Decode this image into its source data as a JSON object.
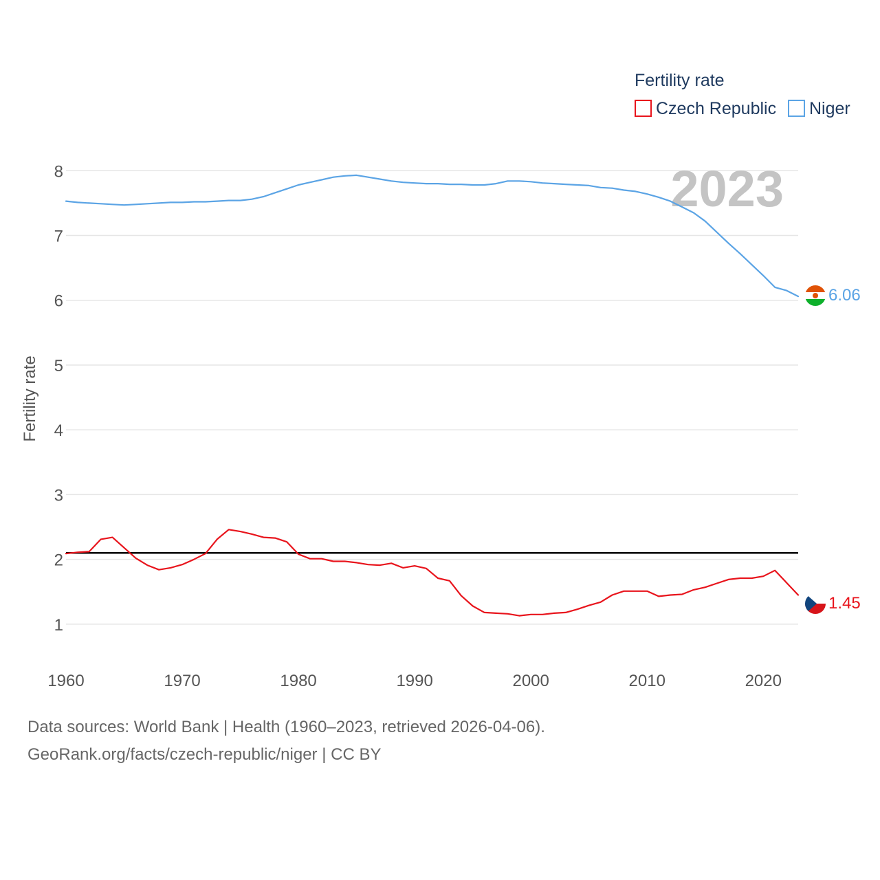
{
  "chart_data": {
    "type": "line",
    "ylabel": "Fertility rate",
    "xlabel": "",
    "xlim": [
      1960,
      2023
    ],
    "ylim": [
      0.5,
      8.3
    ],
    "y_ticks": [
      1,
      2,
      3,
      4,
      5,
      6,
      7,
      8
    ],
    "x_ticks": [
      1960,
      1970,
      1980,
      1990,
      2000,
      2010,
      2020
    ],
    "grid": true,
    "current_year": "2023",
    "legend": {
      "title": "Fertility rate",
      "position": "top-right"
    },
    "reference_line": {
      "y": 2.1,
      "color": "#000000"
    },
    "series": [
      {
        "name": "Czech Republic",
        "color": "#e8141c",
        "end_label": "1.45",
        "x": [
          1960,
          1961,
          1962,
          1963,
          1964,
          1965,
          1966,
          1967,
          1968,
          1969,
          1970,
          1971,
          1972,
          1973,
          1974,
          1975,
          1976,
          1977,
          1978,
          1979,
          1980,
          1981,
          1982,
          1983,
          1984,
          1985,
          1986,
          1987,
          1988,
          1989,
          1990,
          1991,
          1992,
          1993,
          1994,
          1995,
          1996,
          1997,
          1998,
          1999,
          2000,
          2001,
          2002,
          2003,
          2004,
          2005,
          2006,
          2007,
          2008,
          2009,
          2010,
          2011,
          2012,
          2013,
          2014,
          2015,
          2016,
          2017,
          2018,
          2019,
          2020,
          2021,
          2022,
          2023
        ],
        "values": [
          2.09,
          2.11,
          2.12,
          2.31,
          2.34,
          2.18,
          2.02,
          1.91,
          1.84,
          1.87,
          1.92,
          2.0,
          2.09,
          2.31,
          2.46,
          2.43,
          2.39,
          2.34,
          2.33,
          2.27,
          2.08,
          2.01,
          2.01,
          1.97,
          1.97,
          1.95,
          1.92,
          1.91,
          1.94,
          1.87,
          1.9,
          1.86,
          1.71,
          1.67,
          1.44,
          1.28,
          1.18,
          1.17,
          1.16,
          1.13,
          1.15,
          1.15,
          1.17,
          1.18,
          1.23,
          1.29,
          1.34,
          1.45,
          1.51,
          1.51,
          1.51,
          1.43,
          1.45,
          1.46,
          1.53,
          1.57,
          1.63,
          1.69,
          1.71,
          1.71,
          1.74,
          1.83,
          1.64,
          1.45
        ]
      },
      {
        "name": "Niger",
        "color": "#5ba4e5",
        "end_label": "6.06",
        "x": [
          1960,
          1961,
          1962,
          1963,
          1964,
          1965,
          1966,
          1967,
          1968,
          1969,
          1970,
          1971,
          1972,
          1973,
          1974,
          1975,
          1976,
          1977,
          1978,
          1979,
          1980,
          1981,
          1982,
          1983,
          1984,
          1985,
          1986,
          1987,
          1988,
          1989,
          1990,
          1991,
          1992,
          1993,
          1994,
          1995,
          1996,
          1997,
          1998,
          1999,
          2000,
          2001,
          2002,
          2003,
          2004,
          2005,
          2006,
          2007,
          2008,
          2009,
          2010,
          2011,
          2012,
          2013,
          2014,
          2015,
          2016,
          2017,
          2018,
          2019,
          2020,
          2021,
          2022,
          2023
        ],
        "values": [
          7.53,
          7.51,
          7.5,
          7.49,
          7.48,
          7.47,
          7.48,
          7.49,
          7.5,
          7.51,
          7.51,
          7.52,
          7.52,
          7.53,
          7.54,
          7.54,
          7.56,
          7.6,
          7.66,
          7.72,
          7.78,
          7.82,
          7.86,
          7.9,
          7.92,
          7.93,
          7.9,
          7.87,
          7.84,
          7.82,
          7.81,
          7.8,
          7.8,
          7.79,
          7.79,
          7.78,
          7.78,
          7.8,
          7.84,
          7.84,
          7.83,
          7.81,
          7.8,
          7.79,
          7.78,
          7.77,
          7.74,
          7.73,
          7.7,
          7.68,
          7.64,
          7.59,
          7.53,
          7.44,
          7.35,
          7.22,
          7.05,
          6.88,
          6.72,
          6.55,
          6.38,
          6.2,
          6.15,
          6.06
        ]
      }
    ]
  },
  "footer": {
    "line1": "Data sources: World Bank | Health (1960–2023, retrieved 2026-04-06).",
    "line2": "GeoRank.org/facts/czech-republic/niger | CC BY"
  }
}
